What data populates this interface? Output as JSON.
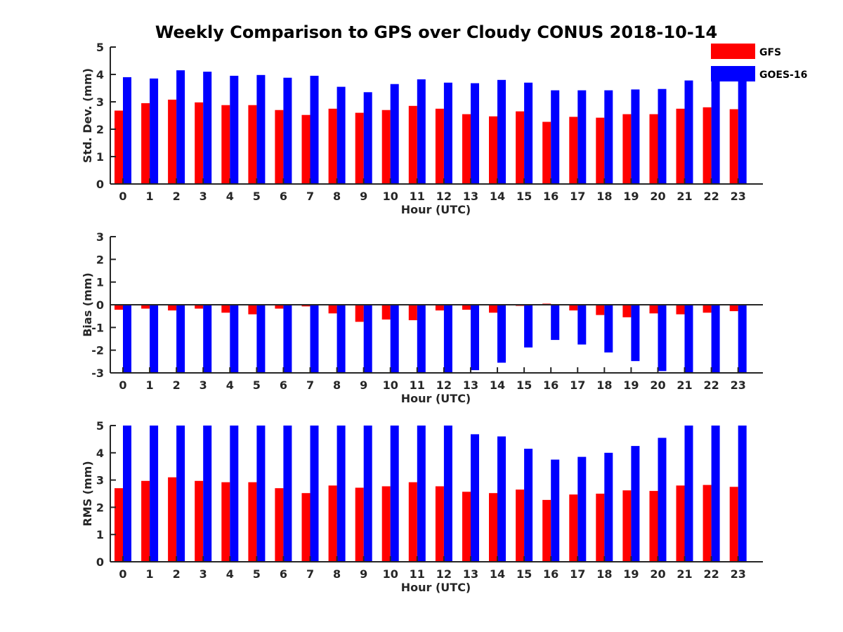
{
  "chart_data": {
    "title": "Weekly Comparison to GPS over Cloudy CONUS 2018-10-14",
    "categories": [
      "0",
      "1",
      "2",
      "3",
      "4",
      "5",
      "6",
      "7",
      "8",
      "9",
      "10",
      "11",
      "12",
      "13",
      "14",
      "15",
      "16",
      "17",
      "18",
      "19",
      "20",
      "21",
      "22",
      "23"
    ],
    "legend": {
      "placement": "top-right",
      "items": [
        {
          "name": "GFS",
          "color": "#ff0000"
        },
        {
          "name": "GOES-16",
          "color": "#0000ff"
        }
      ]
    },
    "grid": false,
    "panels": [
      {
        "type": "bar",
        "xlabel": "Hour (UTC)",
        "ylabel": "Std. Dev. (mm)",
        "ylim": [
          0,
          5
        ],
        "yticks": [
          "0",
          "1",
          "2",
          "3",
          "4",
          "5"
        ],
        "series": [
          {
            "name": "GFS",
            "color": "#ff0000",
            "values": [
              2.68,
              2.95,
              3.08,
              2.98,
              2.88,
              2.88,
              2.7,
              2.52,
              2.75,
              2.6,
              2.7,
              2.85,
              2.75,
              2.55,
              2.47,
              2.65,
              2.27,
              2.45,
              2.42,
              2.55,
              2.55,
              2.75,
              2.8,
              2.73
            ]
          },
          {
            "name": "GOES-16",
            "color": "#0000ff",
            "values": [
              3.9,
              3.85,
              4.15,
              4.1,
              3.95,
              3.98,
              3.88,
              3.95,
              3.55,
              3.35,
              3.65,
              3.82,
              3.7,
              3.68,
              3.8,
              3.7,
              3.42,
              3.42,
              3.42,
              3.45,
              3.47,
              3.78,
              3.92,
              3.85
            ]
          }
        ]
      },
      {
        "type": "bar",
        "xlabel": "Hour (UTC)",
        "ylabel": "Bias (mm)",
        "ylim": [
          -3,
          3
        ],
        "yticks": [
          "-3",
          "-2",
          "-1",
          "0",
          "1",
          "2",
          "3"
        ],
        "series": [
          {
            "name": "GFS",
            "color": "#ff0000",
            "values": [
              -0.22,
              -0.17,
              -0.25,
              -0.17,
              -0.35,
              -0.42,
              -0.17,
              -0.07,
              -0.38,
              -0.75,
              -0.65,
              -0.68,
              -0.25,
              -0.22,
              -0.35,
              -0.05,
              0.05,
              -0.25,
              -0.45,
              -0.55,
              -0.38,
              -0.42,
              -0.35,
              -0.28
            ]
          },
          {
            "name": "GOES-16",
            "color": "#0000ff",
            "values": [
              -3.5,
              -3.5,
              -3.5,
              -3.5,
              -3.5,
              -3.5,
              -3.5,
              -3.5,
              -3.5,
              -3.5,
              -3.5,
              -3.5,
              -3.5,
              -2.88,
              -2.55,
              -1.88,
              -1.55,
              -1.75,
              -2.1,
              -2.48,
              -2.92,
              -3.5,
              -3.5,
              -3.5
            ]
          }
        ]
      },
      {
        "type": "bar",
        "xlabel": "Hour (UTC)",
        "ylabel": "RMS (mm)",
        "ylim": [
          0,
          5
        ],
        "yticks": [
          "0",
          "1",
          "2",
          "3",
          "4",
          "5"
        ],
        "series": [
          {
            "name": "GFS",
            "color": "#ff0000",
            "values": [
              2.7,
              2.97,
              3.1,
              2.97,
              2.92,
              2.92,
              2.7,
              2.52,
              2.8,
              2.72,
              2.77,
              2.92,
              2.77,
              2.57,
              2.52,
              2.65,
              2.27,
              2.47,
              2.5,
              2.62,
              2.6,
              2.8,
              2.82,
              2.75
            ]
          },
          {
            "name": "GOES-16",
            "color": "#0000ff",
            "values": [
              5.5,
              5.5,
              5.5,
              5.5,
              5.5,
              5.5,
              5.5,
              5.5,
              5.5,
              5.5,
              5.5,
              5.5,
              5.5,
              4.68,
              4.6,
              4.15,
              3.75,
              3.85,
              4.0,
              4.25,
              4.55,
              5.5,
              5.5,
              5.5
            ]
          }
        ]
      }
    ]
  }
}
